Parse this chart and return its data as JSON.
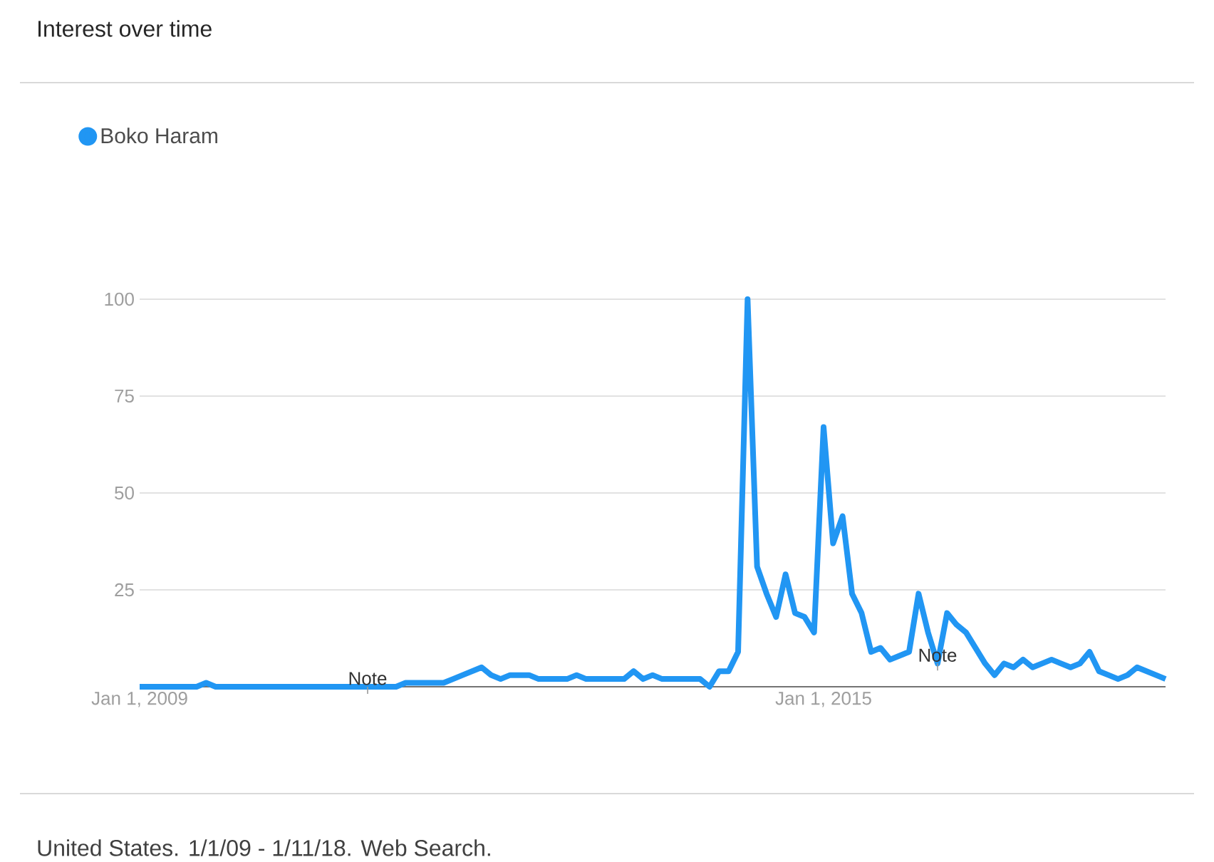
{
  "chart_data": {
    "type": "line",
    "title": "Interest over time",
    "x": [
      "2009-01",
      "2009-02",
      "2009-03",
      "2009-04",
      "2009-05",
      "2009-06",
      "2009-07",
      "2009-08",
      "2009-09",
      "2009-10",
      "2009-11",
      "2009-12",
      "2010-01",
      "2010-02",
      "2010-03",
      "2010-04",
      "2010-05",
      "2010-06",
      "2010-07",
      "2010-08",
      "2010-09",
      "2010-10",
      "2010-11",
      "2010-12",
      "2011-01",
      "2011-02",
      "2011-03",
      "2011-04",
      "2011-05",
      "2011-06",
      "2011-07",
      "2011-08",
      "2011-09",
      "2011-10",
      "2011-11",
      "2011-12",
      "2012-01",
      "2012-02",
      "2012-03",
      "2012-04",
      "2012-05",
      "2012-06",
      "2012-07",
      "2012-08",
      "2012-09",
      "2012-10",
      "2012-11",
      "2012-12",
      "2013-01",
      "2013-02",
      "2013-03",
      "2013-04",
      "2013-05",
      "2013-06",
      "2013-07",
      "2013-08",
      "2013-09",
      "2013-10",
      "2013-11",
      "2013-12",
      "2014-01",
      "2014-02",
      "2014-03",
      "2014-04",
      "2014-05",
      "2014-06",
      "2014-07",
      "2014-08",
      "2014-09",
      "2014-10",
      "2014-11",
      "2014-12",
      "2015-01",
      "2015-02",
      "2015-03",
      "2015-04",
      "2015-05",
      "2015-06",
      "2015-07",
      "2015-08",
      "2015-09",
      "2015-10",
      "2015-11",
      "2015-12",
      "2016-01",
      "2016-02",
      "2016-03",
      "2016-04",
      "2016-05",
      "2016-06",
      "2016-07",
      "2016-08",
      "2016-09",
      "2016-10",
      "2016-11",
      "2016-12",
      "2017-01",
      "2017-02",
      "2017-03",
      "2017-04",
      "2017-05",
      "2017-06",
      "2017-07",
      "2017-08",
      "2017-09",
      "2017-10",
      "2017-11",
      "2017-12",
      "2018-01"
    ],
    "series": [
      {
        "name": "Boko Haram",
        "color": "#2196f3",
        "values": [
          0,
          0,
          0,
          0,
          0,
          0,
          0,
          1,
          0,
          0,
          0,
          0,
          0,
          0,
          0,
          0,
          0,
          0,
          0,
          0,
          0,
          0,
          0,
          0,
          0,
          0,
          0,
          0,
          1,
          1,
          1,
          1,
          1,
          2,
          3,
          4,
          5,
          3,
          2,
          3,
          3,
          3,
          2,
          2,
          2,
          2,
          3,
          2,
          2,
          2,
          2,
          2,
          4,
          2,
          3,
          2,
          2,
          2,
          2,
          2,
          0,
          4,
          4,
          9,
          100,
          31,
          24,
          18,
          29,
          19,
          18,
          14,
          67,
          37,
          44,
          24,
          19,
          9,
          10,
          7,
          8,
          9,
          24,
          14,
          6,
          19,
          16,
          14,
          10,
          6,
          3,
          6,
          5,
          7,
          5,
          6,
          7,
          6,
          5,
          6,
          9,
          4,
          3,
          2,
          3,
          5,
          4,
          3,
          2
        ]
      }
    ],
    "xlim": [
      "2009-01",
      "2018-01"
    ],
    "xticks": [
      {
        "value": "2009-01-01",
        "label": "Jan 1, 2009"
      },
      {
        "value": "2015-01-01",
        "label": "Jan 1, 2015"
      }
    ],
    "ylim": [
      0,
      100
    ],
    "yticks": [
      25,
      50,
      75,
      100
    ],
    "grid": "y",
    "legend": "top left",
    "marker": "none",
    "line_style": "solid",
    "annotations": [
      "United States. 1/1/09 - 1/11/18. Web Search.",
      {
        "text": "Note",
        "x": "2011-01",
        "y": 0
      },
      {
        "text": "Note",
        "x": "2016-01",
        "y": 6
      }
    ]
  }
}
